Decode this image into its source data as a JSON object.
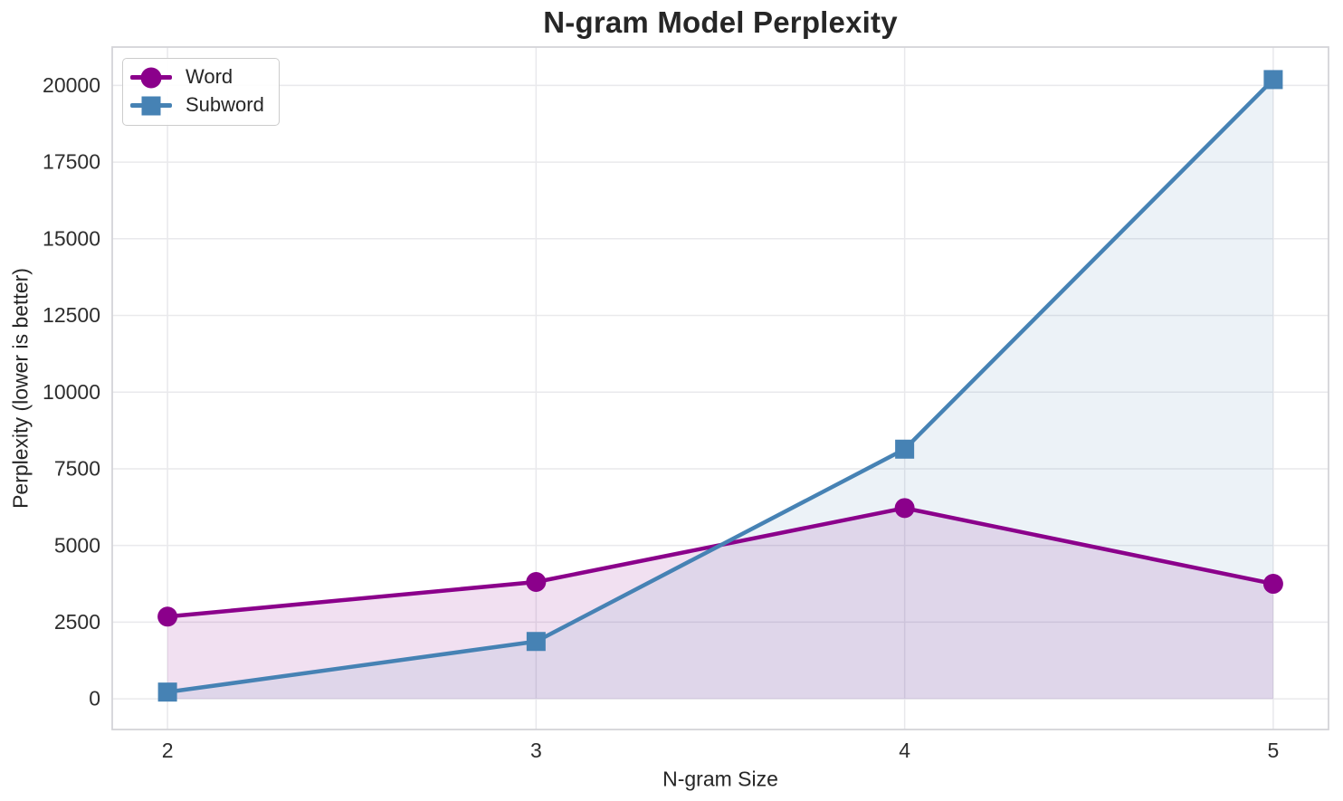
{
  "chart_data": {
    "type": "line",
    "title": "N-gram Model Perplexity",
    "xlabel": "N-gram Size",
    "ylabel": "Perplexity (lower is better)",
    "x": [
      2,
      3,
      4,
      5
    ],
    "series": [
      {
        "name": "Word",
        "marker": "circle",
        "color": "#8B008B",
        "fill_alpha": 0.12,
        "values": [
          2680,
          3810,
          6220,
          3750
        ]
      },
      {
        "name": "Subword",
        "marker": "square",
        "color": "#4682B4",
        "fill_alpha": 0.1,
        "values": [
          220,
          1870,
          8140,
          20190
        ]
      }
    ],
    "xticks": [
      2,
      3,
      4,
      5
    ],
    "yticks": [
      0,
      2500,
      5000,
      7500,
      10000,
      12500,
      15000,
      17500,
      20000
    ],
    "xlim": [
      1.85,
      5.15
    ],
    "ylim": [
      -1000,
      21250
    ],
    "grid": true,
    "fill_to_zero": true,
    "legend_position": "upper left",
    "grid_color": "#e9e9ec",
    "spine_color": "#d4d4d8"
  }
}
